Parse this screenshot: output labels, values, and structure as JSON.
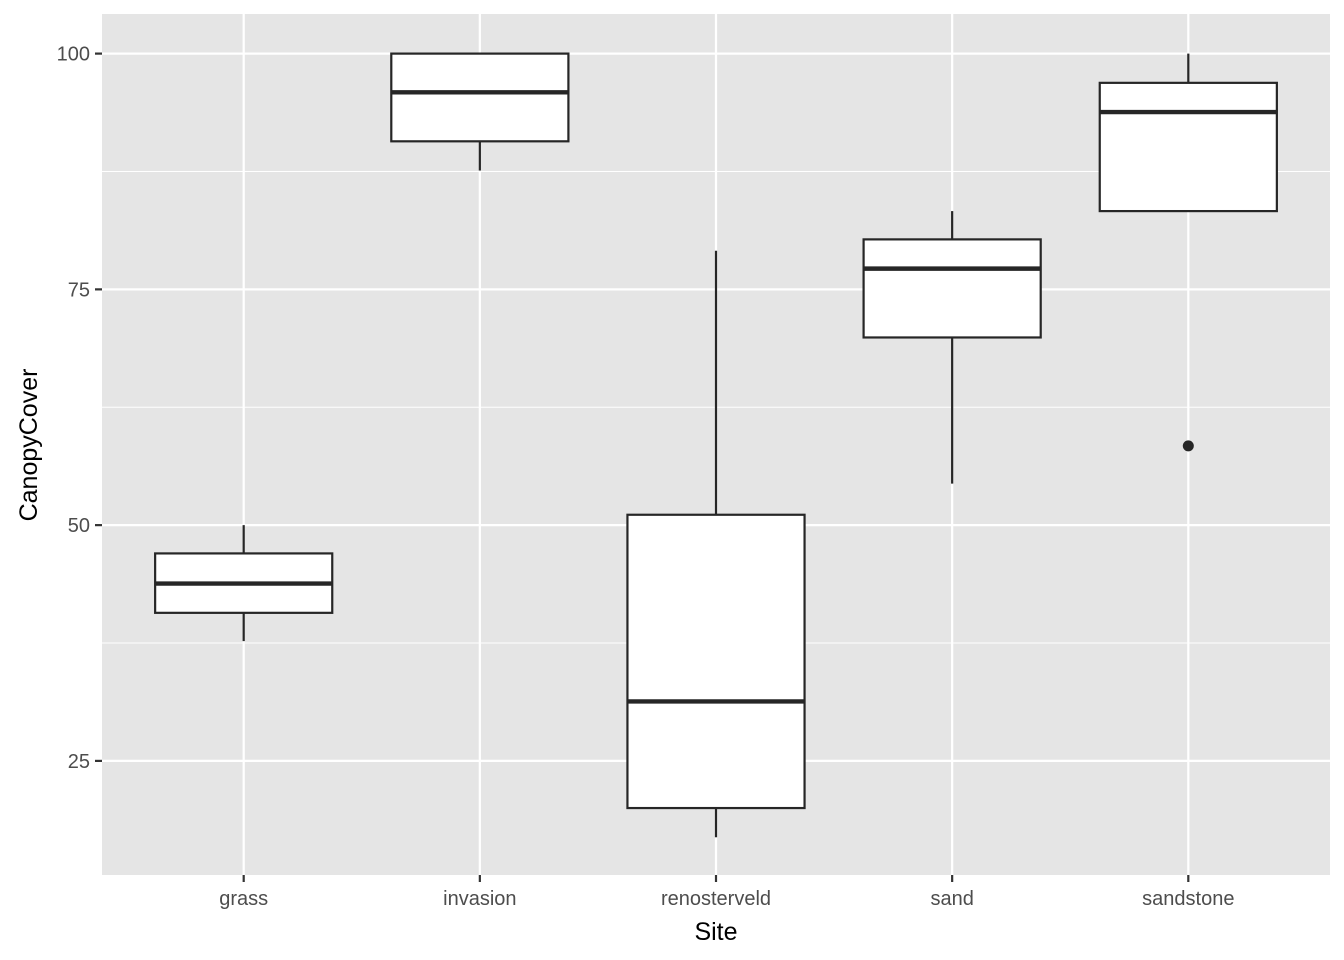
{
  "chart_data": {
    "type": "boxplot",
    "title": "",
    "xlabel": "Site",
    "ylabel": "CanopyCover",
    "categories": [
      "grass",
      "invasion",
      "renosterveld",
      "sand",
      "sandstone"
    ],
    "boxes": [
      {
        "category": "grass",
        "whisker_low": 37.7,
        "q1": 40.7,
        "median": 43.8,
        "q3": 47.0,
        "whisker_high": 50.0,
        "outliers": []
      },
      {
        "category": "invasion",
        "whisker_low": 87.6,
        "q1": 90.7,
        "median": 95.9,
        "q3": 100.0,
        "whisker_high": 100.0,
        "outliers": []
      },
      {
        "category": "renosterveld",
        "whisker_low": 16.9,
        "q1": 20.0,
        "median": 31.3,
        "q3": 51.1,
        "whisker_high": 79.1,
        "outliers": []
      },
      {
        "category": "sand",
        "whisker_low": 54.4,
        "q1": 69.9,
        "median": 77.2,
        "q3": 80.3,
        "whisker_high": 83.3,
        "outliers": []
      },
      {
        "category": "sandstone",
        "whisker_low": 83.3,
        "q1": 83.3,
        "median": 93.8,
        "q3": 96.9,
        "whisker_high": 100.0,
        "outliers": [
          58.4
        ]
      }
    ],
    "yticks": [
      25,
      50,
      75,
      100
    ],
    "ylim": [
      12.9,
      104.2
    ],
    "grid": true,
    "colors": {
      "panel_background": "#e5e5e5",
      "grid": "#ffffff",
      "box_fill": "#ffffff",
      "box_stroke": "#262626",
      "tick_text": "#4d4d4d",
      "axis_title": "#000000"
    }
  }
}
